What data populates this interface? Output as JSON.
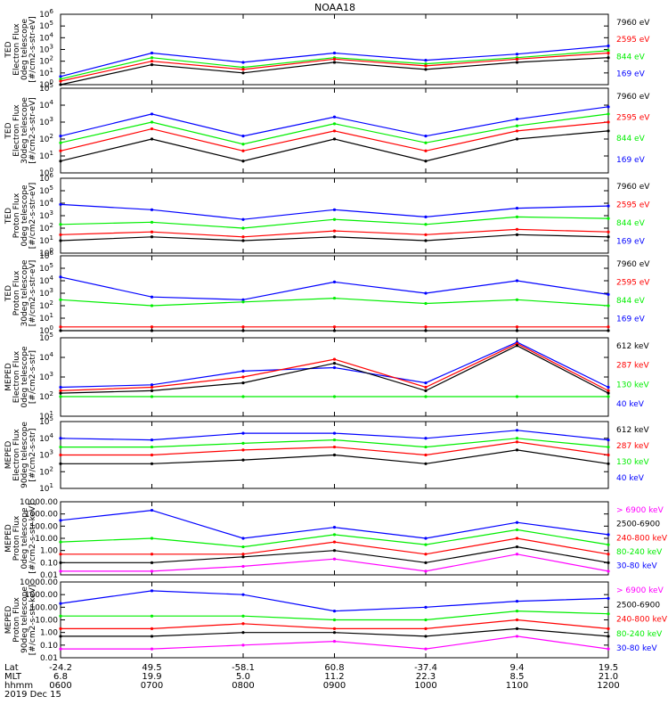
{
  "title": "NOAA18",
  "date_label": "2019 Dec 15",
  "footer": {
    "row_labels": [
      "Lat",
      "MLT",
      "hhmm"
    ],
    "columns": [
      {
        "lat": "-24.2",
        "mlt": "6.8",
        "hhmm": "0600"
      },
      {
        "lat": "49.5",
        "mlt": "19.9",
        "hhmm": "0700"
      },
      {
        "lat": "-58.1",
        "mlt": "5.0",
        "hhmm": "0800"
      },
      {
        "lat": "60.8",
        "mlt": "11.2",
        "hhmm": "0900"
      },
      {
        "lat": "-37.4",
        "mlt": "22.3",
        "hhmm": "1000"
      },
      {
        "lat": "9.4",
        "mlt": "8.5",
        "hhmm": "1100"
      },
      {
        "lat": "19.5",
        "mlt": "21.0",
        "hhmm": "1200"
      }
    ]
  },
  "colors": {
    "black": "#000000",
    "red": "#ff0000",
    "green": "#00ee00",
    "blue": "#0000ff",
    "magenta": "#ff00ff"
  },
  "chart_data": [
    {
      "type": "line",
      "ylabel": [
        "TED",
        "Electron Flux",
        "0deg telescope",
        "[#/cm2-s-str-eV]"
      ],
      "yscale": "log",
      "ylim": [
        1,
        1000000
      ],
      "yticks": [
        "10^0",
        "10^1",
        "10^2",
        "10^3",
        "10^4",
        "10^5",
        "10^6"
      ],
      "legend": [
        {
          "label": "7960 eV",
          "color": "#000000"
        },
        {
          "label": "2595 eV",
          "color": "#ff0000"
        },
        {
          "label": "844 eV",
          "color": "#00ee00"
        },
        {
          "label": "169 eV",
          "color": "#0000ff"
        }
      ],
      "x": [
        "0600",
        "0700",
        "0800",
        "0900",
        "1000",
        "1100",
        "1200"
      ],
      "series": [
        {
          "color": "#0000ff",
          "values": [
            5,
            500,
            80,
            500,
            120,
            400,
            2000
          ]
        },
        {
          "color": "#00ee00",
          "values": [
            3,
            200,
            30,
            200,
            60,
            200,
            800
          ]
        },
        {
          "color": "#ff0000",
          "values": [
            2,
            100,
            20,
            150,
            40,
            150,
            500
          ]
        },
        {
          "color": "#000000",
          "values": [
            1,
            50,
            10,
            80,
            20,
            80,
            200
          ]
        }
      ]
    },
    {
      "type": "line",
      "ylabel": [
        "TED",
        "Electron Flux",
        "30deg telescope",
        "[#/cm2-s-str-eV]"
      ],
      "yscale": "log",
      "ylim": [
        1,
        100000
      ],
      "yticks": [
        "10^0",
        "10^1",
        "10^2",
        "10^3",
        "10^4",
        "10^5"
      ],
      "legend": [
        {
          "label": "7960 eV",
          "color": "#000000"
        },
        {
          "label": "2595 eV",
          "color": "#ff0000"
        },
        {
          "label": "844 eV",
          "color": "#00ee00"
        },
        {
          "label": "169 eV",
          "color": "#0000ff"
        }
      ],
      "x": [
        "0600",
        "0700",
        "0800",
        "0900",
        "1000",
        "1100",
        "1200"
      ],
      "series": [
        {
          "color": "#0000ff",
          "values": [
            150,
            3000,
            150,
            2000,
            150,
            1500,
            8000
          ]
        },
        {
          "color": "#00ee00",
          "values": [
            60,
            1000,
            50,
            800,
            60,
            600,
            3000
          ]
        },
        {
          "color": "#ff0000",
          "values": [
            20,
            400,
            20,
            300,
            20,
            300,
            1000
          ]
        },
        {
          "color": "#000000",
          "values": [
            5,
            100,
            5,
            100,
            5,
            100,
            300
          ]
        }
      ]
    },
    {
      "type": "line",
      "ylabel": [
        "TED",
        "Proton Flux",
        "0deg telescope",
        "[#/cm2-s-str-eV]"
      ],
      "yscale": "log",
      "ylim": [
        1,
        1000000
      ],
      "yticks": [
        "10^0",
        "10^1",
        "10^2",
        "10^3",
        "10^4",
        "10^5",
        "10^6"
      ],
      "legend": [
        {
          "label": "7960 eV",
          "color": "#000000"
        },
        {
          "label": "2595 eV",
          "color": "#ff0000"
        },
        {
          "label": "844 eV",
          "color": "#00ee00"
        },
        {
          "label": "169 eV",
          "color": "#0000ff"
        }
      ],
      "x": [
        "0600",
        "0700",
        "0800",
        "0900",
        "1000",
        "1100",
        "1200"
      ],
      "series": [
        {
          "color": "#0000ff",
          "values": [
            8000,
            3000,
            500,
            3000,
            800,
            4000,
            6000
          ]
        },
        {
          "color": "#00ee00",
          "values": [
            200,
            300,
            100,
            500,
            200,
            800,
            600
          ]
        },
        {
          "color": "#ff0000",
          "values": [
            30,
            50,
            20,
            60,
            30,
            80,
            50
          ]
        },
        {
          "color": "#000000",
          "values": [
            10,
            20,
            10,
            20,
            10,
            30,
            20
          ]
        }
      ]
    },
    {
      "type": "line",
      "ylabel": [
        "TED",
        "Proton Flux",
        "30deg telescope",
        "[#/cm2-s-str-eV]"
      ],
      "yscale": "log",
      "ylim": [
        1,
        1000000
      ],
      "yticks": [
        "10^0",
        "10^1",
        "10^2",
        "10^3",
        "10^4",
        "10^5",
        "10^6"
      ],
      "legend": [
        {
          "label": "7960 eV",
          "color": "#000000"
        },
        {
          "label": "2595 eV",
          "color": "#ff0000"
        },
        {
          "label": "844 eV",
          "color": "#00ee00"
        },
        {
          "label": "169 eV",
          "color": "#0000ff"
        }
      ],
      "x": [
        "0600",
        "0700",
        "0800",
        "0900",
        "1000",
        "1100",
        "1200"
      ],
      "series": [
        {
          "color": "#0000ff",
          "values": [
            20000,
            500,
            300,
            8000,
            1000,
            10000,
            800
          ]
        },
        {
          "color": "#00ee00",
          "values": [
            300,
            100,
            200,
            400,
            150,
            300,
            100
          ]
        },
        {
          "color": "#ff0000",
          "values": [
            2,
            2,
            2,
            2,
            2,
            2,
            2
          ]
        },
        {
          "color": "#000000",
          "values": [
            1,
            1,
            1,
            1,
            1,
            1,
            1
          ]
        }
      ]
    },
    {
      "type": "line",
      "ylabel": [
        "MEPED",
        "Electron Flux",
        "0deg telescope",
        "[#/cm2-s-str]"
      ],
      "yscale": "log",
      "ylim": [
        10,
        100000
      ],
      "yticks": [
        "10^1",
        "10^2",
        "10^3",
        "10^4",
        "10^5"
      ],
      "legend": [
        {
          "label": "612 keV",
          "color": "#000000"
        },
        {
          "label": "287 keV",
          "color": "#ff0000"
        },
        {
          "label": "130 keV",
          "color": "#00ee00"
        },
        {
          "label": "40 keV",
          "color": "#0000ff"
        }
      ],
      "x": [
        "0600",
        "0700",
        "0800",
        "0900",
        "1000",
        "1100",
        "1200"
      ],
      "series": [
        {
          "color": "#0000ff",
          "values": [
            300,
            400,
            2000,
            3000,
            500,
            60000,
            300
          ]
        },
        {
          "color": "#ff0000",
          "values": [
            200,
            300,
            1000,
            8000,
            300,
            50000,
            200
          ]
        },
        {
          "color": "#00ee00",
          "values": [
            100,
            100,
            100,
            100,
            100,
            100,
            100
          ]
        },
        {
          "color": "#000000",
          "values": [
            150,
            200,
            500,
            5000,
            200,
            40000,
            150
          ]
        }
      ]
    },
    {
      "type": "line",
      "ylabel": [
        "MEPED",
        "Electron Flux",
        "90deg telescope",
        "[#/cm2-s-str]"
      ],
      "yscale": "log",
      "ylim": [
        10,
        100000
      ],
      "yticks": [
        "10^1",
        "10^2",
        "10^3",
        "10^4",
        "10^5"
      ],
      "legend": [
        {
          "label": "612 keV",
          "color": "#000000"
        },
        {
          "label": "287 keV",
          "color": "#ff0000"
        },
        {
          "label": "130 keV",
          "color": "#00ee00"
        },
        {
          "label": "40 keV",
          "color": "#0000ff"
        }
      ],
      "x": [
        "0600",
        "0700",
        "0800",
        "0900",
        "1000",
        "1100",
        "1200"
      ],
      "series": [
        {
          "color": "#0000ff",
          "values": [
            10000,
            8000,
            20000,
            20000,
            10000,
            30000,
            8000
          ]
        },
        {
          "color": "#00ee00",
          "values": [
            3000,
            3000,
            5000,
            8000,
            3000,
            10000,
            3000
          ]
        },
        {
          "color": "#ff0000",
          "values": [
            1000,
            1000,
            2000,
            3000,
            1000,
            6000,
            1000
          ]
        },
        {
          "color": "#000000",
          "values": [
            300,
            300,
            500,
            1000,
            300,
            2000,
            300
          ]
        }
      ]
    },
    {
      "type": "line",
      "ylabel": [
        "MEPED",
        "Proton Flux",
        "0deg telescope",
        "[#/cm2-s-str-keV]"
      ],
      "yscale": "log",
      "ylim": [
        0.01,
        10000
      ],
      "yticks": [
        "0.01",
        "0.10",
        "1.00",
        "10.00",
        "100.00",
        "1000.00",
        "10000.00"
      ],
      "legend": [
        {
          "label": "> 6900 keV",
          "color": "#ff00ff"
        },
        {
          "label": "2500-6900",
          "color": "#000000"
        },
        {
          "label": "240-800 keV",
          "color": "#ff0000"
        },
        {
          "label": "80-240 keV",
          "color": "#00ee00"
        },
        {
          "label": "30-80 keV",
          "color": "#0000ff"
        }
      ],
      "x": [
        "0600",
        "0700",
        "0800",
        "0900",
        "1000",
        "1100",
        "1200"
      ],
      "series": [
        {
          "color": "#0000ff",
          "values": [
            300,
            2000,
            10,
            80,
            10,
            200,
            20
          ]
        },
        {
          "color": "#00ee00",
          "values": [
            5,
            10,
            2,
            20,
            3,
            50,
            3
          ]
        },
        {
          "color": "#ff0000",
          "values": [
            0.5,
            0.5,
            0.5,
            5,
            0.5,
            10,
            0.5
          ]
        },
        {
          "color": "#000000",
          "values": [
            0.1,
            0.1,
            0.3,
            1,
            0.1,
            2,
            0.1
          ]
        },
        {
          "color": "#ff00ff",
          "values": [
            0.02,
            0.02,
            0.05,
            0.2,
            0.02,
            0.5,
            0.02
          ]
        }
      ]
    },
    {
      "type": "line",
      "ylabel": [
        "MEPED",
        "Proton Flux",
        "90deg telescope",
        "[#/cm2-s-str-keV]"
      ],
      "yscale": "log",
      "ylim": [
        0.01,
        10000
      ],
      "yticks": [
        "0.01",
        "0.10",
        "1.00",
        "10.00",
        "100.00",
        "1000.00",
        "10000.00"
      ],
      "legend": [
        {
          "label": "> 6900 keV",
          "color": "#ff00ff"
        },
        {
          "label": "2500-6900",
          "color": "#000000"
        },
        {
          "label": "240-800 keV",
          "color": "#ff0000"
        },
        {
          "label": "80-240 keV",
          "color": "#00ee00"
        },
        {
          "label": "30-80 keV",
          "color": "#0000ff"
        }
      ],
      "x": [
        "0600",
        "0700",
        "0800",
        "0900",
        "1000",
        "1100",
        "1200"
      ],
      "series": [
        {
          "color": "#0000ff",
          "values": [
            200,
            2000,
            1000,
            50,
            100,
            300,
            500
          ]
        },
        {
          "color": "#00ee00",
          "values": [
            20,
            20,
            20,
            10,
            10,
            50,
            30
          ]
        },
        {
          "color": "#ff0000",
          "values": [
            2,
            2,
            5,
            2,
            2,
            10,
            2
          ]
        },
        {
          "color": "#000000",
          "values": [
            0.5,
            0.5,
            1,
            1,
            0.5,
            2,
            0.5
          ]
        },
        {
          "color": "#ff00ff",
          "values": [
            0.05,
            0.05,
            0.1,
            0.2,
            0.05,
            0.5,
            0.05
          ]
        }
      ]
    }
  ]
}
